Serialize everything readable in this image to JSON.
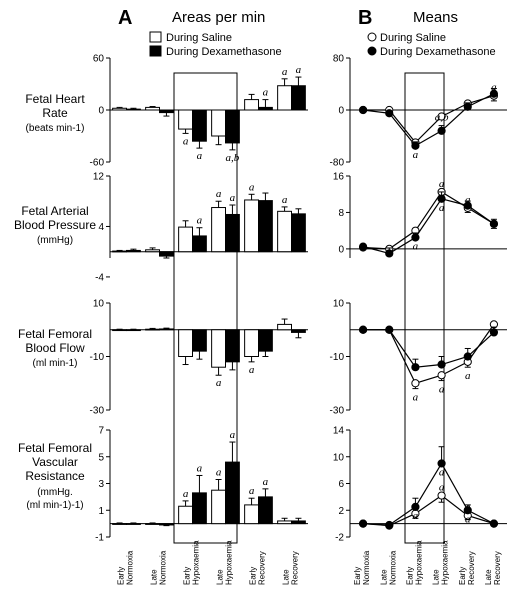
{
  "panels": {
    "A": {
      "letter": "A",
      "title": "Areas per min"
    },
    "B": {
      "letter": "B",
      "title": "Means"
    }
  },
  "legend_A": {
    "saline": "During Saline",
    "dex": "During Dexamethasone"
  },
  "legend_B": {
    "saline": "During Saline",
    "dex": "During Dexamethasone"
  },
  "rows": [
    {
      "line1": "Fetal Heart",
      "line2": "Rate",
      "unit": "(beats min-1)"
    },
    {
      "line1": "Fetal Arterial",
      "line2": "Blood Pressure",
      "unit": "(mmHg)"
    },
    {
      "line1": "Fetal Femoral",
      "line2": "Blood Flow",
      "unit": "(ml min-1)"
    },
    {
      "line1": "Fetal Femoral",
      "line2": "Vascular",
      "line3": "Resistance",
      "unit": "(mmHg.",
      "unit2": "(ml min-1)-1)"
    }
  ],
  "xlabels_A": [
    {
      "l1": "Early",
      "l2": "Normoxia"
    },
    {
      "l1": "Late",
      "l2": "Normoxia"
    },
    {
      "l1": "Early",
      "l2": "Hypoxaemia"
    },
    {
      "l1": "Late",
      "l2": "Hypoxaemia"
    },
    {
      "l1": "Early",
      "l2": "Recovery"
    },
    {
      "l1": "Late",
      "l2": "Recovery"
    }
  ],
  "xlabels_B": [
    {
      "l1": "Early",
      "l2": "Normoxia"
    },
    {
      "l1": "Late",
      "l2": "Normoxia"
    },
    {
      "l1": "Early",
      "l2": "Hypoxaemia"
    },
    {
      "l1": "Late",
      "l2": "Hypoxaemia"
    },
    {
      "l1": "Early",
      "l2": "Recovery"
    },
    {
      "l1": "Late",
      "l2": "Recovery"
    }
  ],
  "colors": {
    "saline": "#ffffff",
    "dex": "#000000",
    "stroke": "#000000"
  },
  "chart_data": [
    {
      "type": "bar",
      "panel": "A",
      "row": "Fetal Heart Rate",
      "ylim": [
        -60,
        60
      ],
      "yticks": [
        "60",
        "0",
        "-60"
      ],
      "categories": [
        "Early Normoxia",
        "Late Normoxia",
        "Early Hypoxaemia",
        "Late Hypoxaemia",
        "Early Recovery",
        "Late Recovery"
      ],
      "series": [
        {
          "name": "During Saline",
          "values": [
            2,
            3,
            -22,
            -30,
            12,
            28
          ],
          "errors": [
            1,
            1,
            5,
            10,
            6,
            8
          ],
          "labels": [
            "",
            "",
            "a",
            "",
            "",
            "a"
          ]
        },
        {
          "name": "During Dexamethasone",
          "values": [
            1,
            -3,
            -36,
            -38,
            3,
            28
          ],
          "errors": [
            1,
            4,
            8,
            8,
            9,
            10
          ],
          "labels": [
            "",
            "",
            "a",
            "a,b",
            "a",
            "a"
          ]
        }
      ]
    },
    {
      "type": "bar",
      "panel": "A",
      "row": "Fetal Arterial Blood Pressure",
      "ylim": [
        -1,
        12
      ],
      "yticks": [
        "12",
        "4",
        "-4"
      ],
      "categories": [
        "Early Normoxia",
        "Late Normoxia",
        "Early Hypoxaemia",
        "Late Hypoxaemia",
        "Early Recovery",
        "Late Recovery"
      ],
      "series": [
        {
          "name": "During Saline",
          "values": [
            0.1,
            0.3,
            3.9,
            7.0,
            8.2,
            6.4
          ],
          "errors": [
            0.1,
            0.3,
            1.0,
            1.0,
            0.9,
            0.7
          ],
          "labels": [
            "",
            "",
            "",
            "a",
            "a",
            "a"
          ]
        },
        {
          "name": "During Dexamethasone",
          "values": [
            0.2,
            -0.7,
            2.5,
            5.9,
            8.1,
            6.0
          ],
          "errors": [
            0.2,
            0.3,
            1.3,
            1.5,
            1.2,
            0.8
          ],
          "labels": [
            "",
            "",
            "a",
            "a",
            "",
            ""
          ]
        }
      ]
    },
    {
      "type": "bar",
      "panel": "A",
      "row": "Fetal Femoral Blood Flow",
      "ylim": [
        -30,
        10
      ],
      "yticks": [
        "10",
        "-10",
        "-30"
      ],
      "categories": [
        "Early Normoxia",
        "Late Normoxia",
        "Early Hypoxaemia",
        "Late Hypoxaemia",
        "Early Recovery",
        "Late Recovery"
      ],
      "series": [
        {
          "name": "During Saline",
          "values": [
            0,
            0.2,
            -10,
            -14,
            -10,
            2
          ],
          "errors": [
            0.2,
            0.3,
            3,
            3,
            2,
            2
          ],
          "labels": [
            "",
            "",
            "",
            "a",
            "a",
            ""
          ]
        },
        {
          "name": "During Dexamethasone",
          "values": [
            0,
            0.3,
            -8,
            -12,
            -8,
            -1
          ],
          "errors": [
            0.2,
            0.3,
            3,
            3,
            2,
            2
          ],
          "labels": [
            "",
            "",
            "",
            "",
            "",
            ""
          ]
        }
      ]
    },
    {
      "type": "bar",
      "panel": "A",
      "row": "Fetal Femoral Vascular Resistance",
      "ylim": [
        -1,
        7
      ],
      "yticks": [
        "7",
        "5",
        "3",
        "1",
        "-1"
      ],
      "categories": [
        "Early Normoxia",
        "Late Normoxia",
        "Early Hypoxaemia",
        "Late Hypoxaemia",
        "Early Recovery",
        "Late Recovery"
      ],
      "series": [
        {
          "name": "During Saline",
          "values": [
            0,
            0,
            1.3,
            2.5,
            1.4,
            0.2
          ],
          "errors": [
            0.05,
            0.05,
            0.4,
            0.8,
            0.5,
            0.2
          ],
          "labels": [
            "",
            "",
            "a",
            "a",
            "a",
            ""
          ]
        },
        {
          "name": "During Dexamethasone",
          "values": [
            0,
            -0.1,
            2.3,
            4.6,
            2.0,
            0.2
          ],
          "errors": [
            0.05,
            0.05,
            1.3,
            1.5,
            0.6,
            0.2
          ],
          "labels": [
            "",
            "",
            "a",
            "a",
            "a",
            ""
          ]
        }
      ]
    },
    {
      "type": "line",
      "panel": "B",
      "row": "Fetal Heart Rate",
      "ylim": [
        -80,
        80
      ],
      "yticks": [
        "80",
        "0",
        "-80"
      ],
      "categories": [
        "Early Normoxia",
        "Late Normoxia",
        "Early Hypoxaemia",
        "Late Hypoxaemia",
        "Early Recovery",
        "Late Recovery"
      ],
      "series": [
        {
          "name": "During Saline",
          "values": [
            0,
            0,
            -50,
            -10,
            10,
            22
          ],
          "errors": [
            2,
            2,
            5,
            4,
            4,
            8
          ],
          "labels": [
            "",
            "",
            "a",
            "",
            "",
            "a"
          ]
        },
        {
          "name": "During Dexamethasone",
          "values": [
            0,
            -5,
            -55,
            -32,
            5,
            25
          ],
          "errors": [
            2,
            3,
            6,
            8,
            6,
            8
          ],
          "labels": [
            "",
            "",
            "",
            "a,b",
            "",
            ""
          ]
        }
      ]
    },
    {
      "type": "line",
      "panel": "B",
      "row": "Fetal Arterial Blood Pressure",
      "ylim": [
        -2,
        16
      ],
      "yticks": [
        "16",
        "8",
        "0"
      ],
      "categories": [
        "Early Normoxia",
        "Late Normoxia",
        "Early Hypoxaemia",
        "Late Hypoxaemia",
        "Early Recovery",
        "Late Recovery"
      ],
      "series": [
        {
          "name": "During Saline",
          "values": [
            0.3,
            0,
            4,
            12.5,
            9,
            5.5
          ],
          "errors": [
            0.5,
            1.5,
            1,
            1,
            1,
            1
          ],
          "labels": [
            "",
            "",
            "",
            "a",
            "a",
            ""
          ]
        },
        {
          "name": "During Dexamethasone",
          "values": [
            0.5,
            -1,
            2.5,
            11,
            9.5,
            5.5
          ],
          "errors": [
            0.5,
            1.2,
            1,
            1.5,
            1,
            1
          ],
          "labels": [
            "",
            "",
            "a",
            "a",
            "",
            ""
          ]
        }
      ]
    },
    {
      "type": "line",
      "panel": "B",
      "row": "Fetal Femoral Blood Flow",
      "ylim": [
        -30,
        10
      ],
      "yticks": [
        "10",
        "-10",
        "-30"
      ],
      "categories": [
        "Early Normoxia",
        "Late Normoxia",
        "Early Hypoxaemia",
        "Late Hypoxaemia",
        "Early Recovery",
        "Late Recovery"
      ],
      "series": [
        {
          "name": "During Saline",
          "values": [
            0,
            0,
            -20,
            -17,
            -12,
            2
          ],
          "errors": [
            0.5,
            0.5,
            2,
            2,
            2,
            2
          ],
          "labels": [
            "",
            "",
            "a",
            "a",
            "a",
            ""
          ]
        },
        {
          "name": "During Dexamethasone",
          "values": [
            0,
            0,
            -14,
            -13,
            -10,
            -1
          ],
          "errors": [
            0.5,
            0.5,
            3,
            3,
            3,
            2
          ],
          "labels": [
            "",
            "",
            "",
            "",
            "",
            ""
          ]
        }
      ]
    },
    {
      "type": "line",
      "panel": "B",
      "row": "Fetal Femoral Vascular Resistance",
      "ylim": [
        -2,
        14
      ],
      "yticks": [
        "14",
        "10",
        "6",
        "2",
        "-2"
      ],
      "categories": [
        "Early Normoxia",
        "Late Normoxia",
        "Early Hypoxaemia",
        "Late Hypoxaemia",
        "Early Recovery",
        "Late Recovery"
      ],
      "series": [
        {
          "name": "During Saline",
          "values": [
            0,
            -0.3,
            1.5,
            4.2,
            1.2,
            0
          ],
          "errors": [
            0.1,
            0.1,
            0.7,
            1.0,
            0.6,
            0.2
          ],
          "labels": [
            "",
            "",
            "a",
            "a",
            "a",
            ""
          ]
        },
        {
          "name": "During Dexamethasone",
          "values": [
            0,
            -0.2,
            2.5,
            9.0,
            2.0,
            0
          ],
          "errors": [
            0.1,
            0.1,
            1.3,
            2.5,
            0.8,
            0.2
          ],
          "labels": [
            "",
            "",
            "a",
            "a",
            "a",
            ""
          ]
        }
      ]
    }
  ]
}
